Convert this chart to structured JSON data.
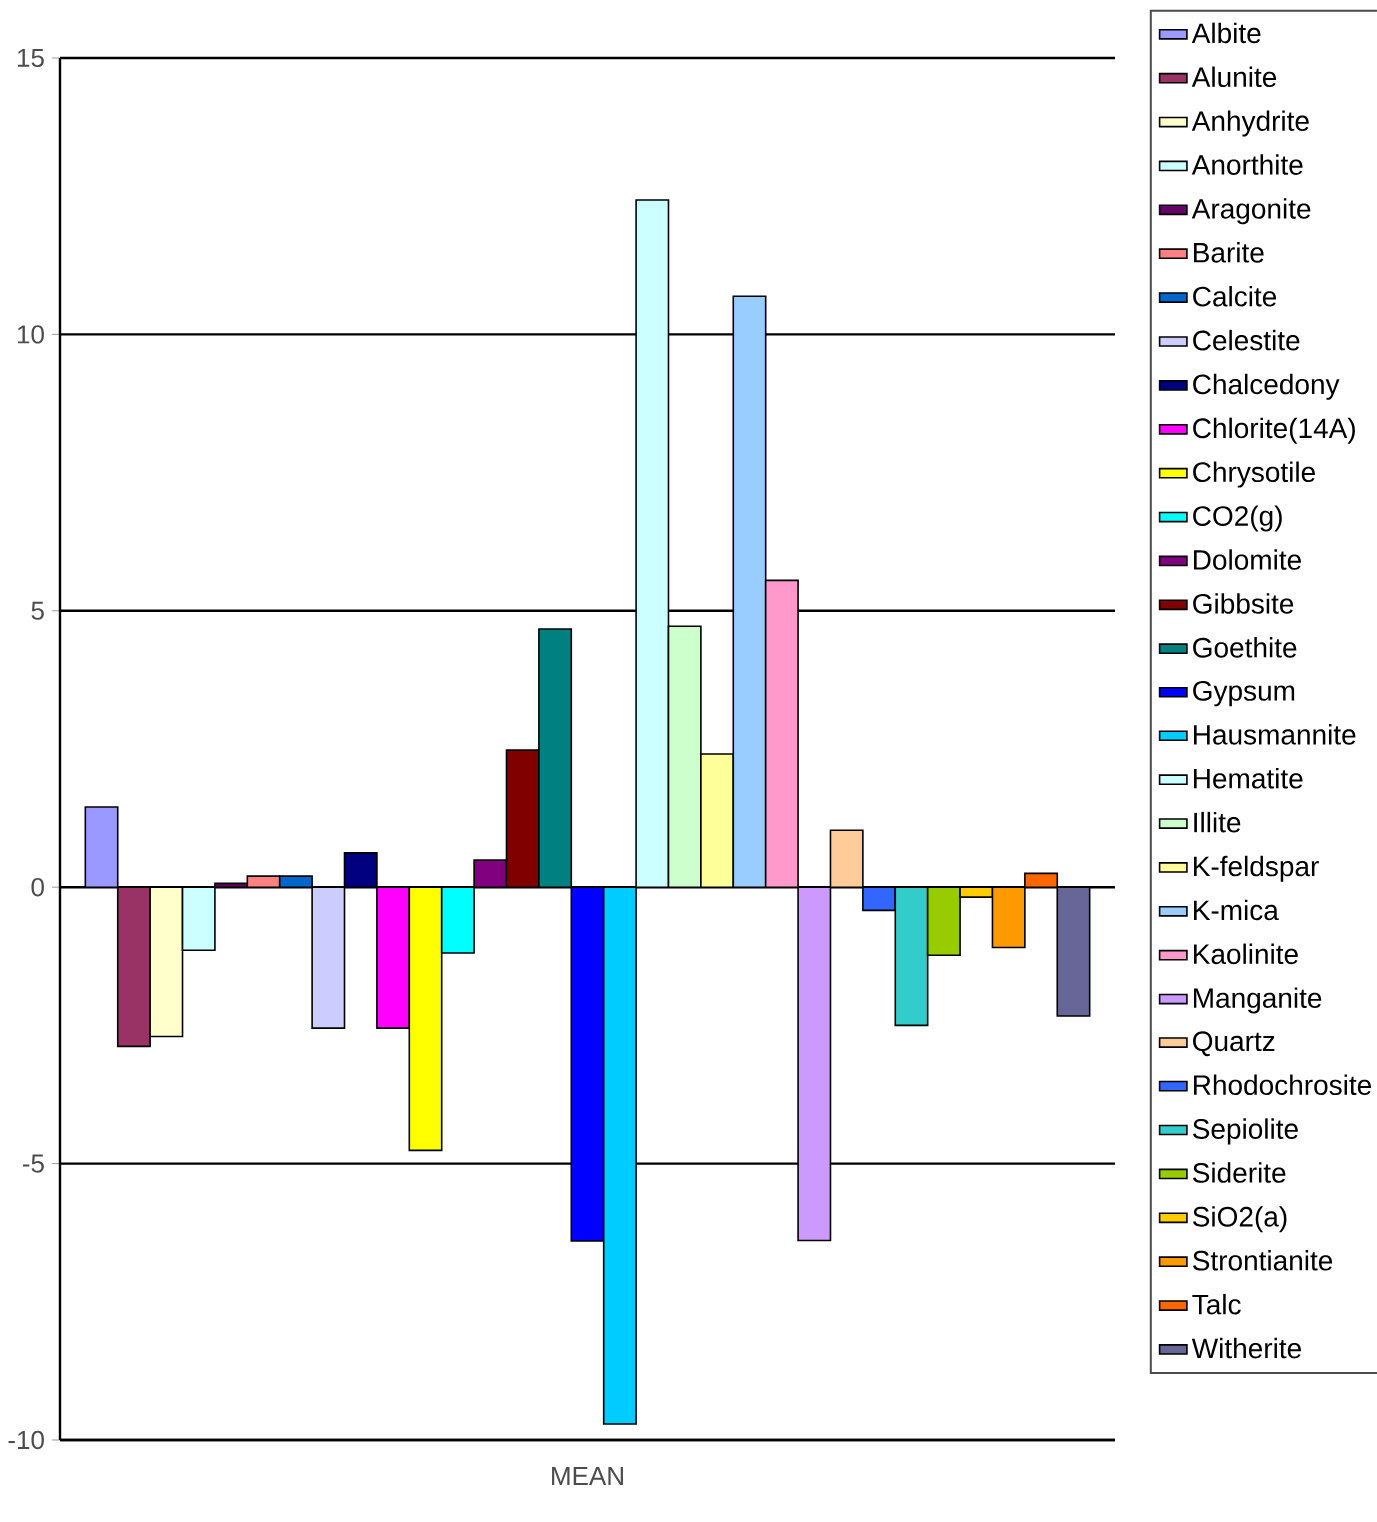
{
  "chart_data": {
    "type": "bar",
    "categories": [
      "MEAN"
    ],
    "ylim": [
      -10,
      15
    ],
    "yticks": [
      -10,
      -5,
      0,
      5,
      10,
      15
    ],
    "grid": "y",
    "legend": "right",
    "series": [
      {
        "name": "Albite",
        "color": "#9999ff",
        "values": [
          1.45
        ]
      },
      {
        "name": "Alunite",
        "color": "#993366",
        "values": [
          -2.88
        ]
      },
      {
        "name": "Anhydrite",
        "color": "#ffffcc",
        "values": [
          -2.7
        ]
      },
      {
        "name": "Anorthite",
        "color": "#ccffff",
        "values": [
          -1.14
        ]
      },
      {
        "name": "Aragonite",
        "color": "#660066",
        "values": [
          0.07
        ]
      },
      {
        "name": "Barite",
        "color": "#ff8080",
        "values": [
          0.2
        ]
      },
      {
        "name": "Calcite",
        "color": "#0066cc",
        "values": [
          0.2
        ]
      },
      {
        "name": "Celestite",
        "color": "#ccccff",
        "values": [
          -2.55
        ]
      },
      {
        "name": "Chalcedony",
        "color": "#000080",
        "values": [
          0.62
        ]
      },
      {
        "name": "Chlorite(14A)",
        "color": "#ff00ff",
        "values": [
          -2.55
        ]
      },
      {
        "name": "Chrysotile",
        "color": "#ffff00",
        "values": [
          -4.76
        ]
      },
      {
        "name": "CO2(g)",
        "color": "#00ffff",
        "values": [
          -1.19
        ]
      },
      {
        "name": "Dolomite",
        "color": "#800080",
        "values": [
          0.49
        ]
      },
      {
        "name": "Gibbsite",
        "color": "#800000",
        "values": [
          2.48
        ]
      },
      {
        "name": "Goethite",
        "color": "#008080",
        "values": [
          4.67
        ]
      },
      {
        "name": "Gypsum",
        "color": "#0000ff",
        "values": [
          -6.4
        ]
      },
      {
        "name": "Hausmannite",
        "color": "#00ccff",
        "values": [
          -9.71
        ]
      },
      {
        "name": "Hematite",
        "color": "#ccffff",
        "values": [
          12.43
        ]
      },
      {
        "name": "Illite",
        "color": "#ccffcc",
        "values": [
          4.72
        ]
      },
      {
        "name": "K-feldspar",
        "color": "#ffff99",
        "values": [
          2.41
        ]
      },
      {
        "name": "K-mica",
        "color": "#99ccff",
        "values": [
          10.69
        ]
      },
      {
        "name": "Kaolinite",
        "color": "#ff99cc",
        "values": [
          5.55
        ]
      },
      {
        "name": "Manganite",
        "color": "#cc99ff",
        "values": [
          -6.39
        ]
      },
      {
        "name": "Quartz",
        "color": "#ffcc99",
        "values": [
          1.03
        ]
      },
      {
        "name": "Rhodochrosite",
        "color": "#3366ff",
        "values": [
          -0.42
        ]
      },
      {
        "name": "Sepiolite",
        "color": "#33cccc",
        "values": [
          -2.5
        ]
      },
      {
        "name": "Siderite",
        "color": "#99cc00",
        "values": [
          -1.23
        ]
      },
      {
        "name": "SiO2(a)",
        "color": "#ffcc00",
        "values": [
          -0.18
        ]
      },
      {
        "name": "Strontianite",
        "color": "#ff9900",
        "values": [
          -1.09
        ]
      },
      {
        "name": "Talc",
        "color": "#ff6600",
        "values": [
          0.25
        ]
      },
      {
        "name": "Witherite",
        "color": "#666699",
        "values": [
          -2.33
        ]
      }
    ]
  }
}
